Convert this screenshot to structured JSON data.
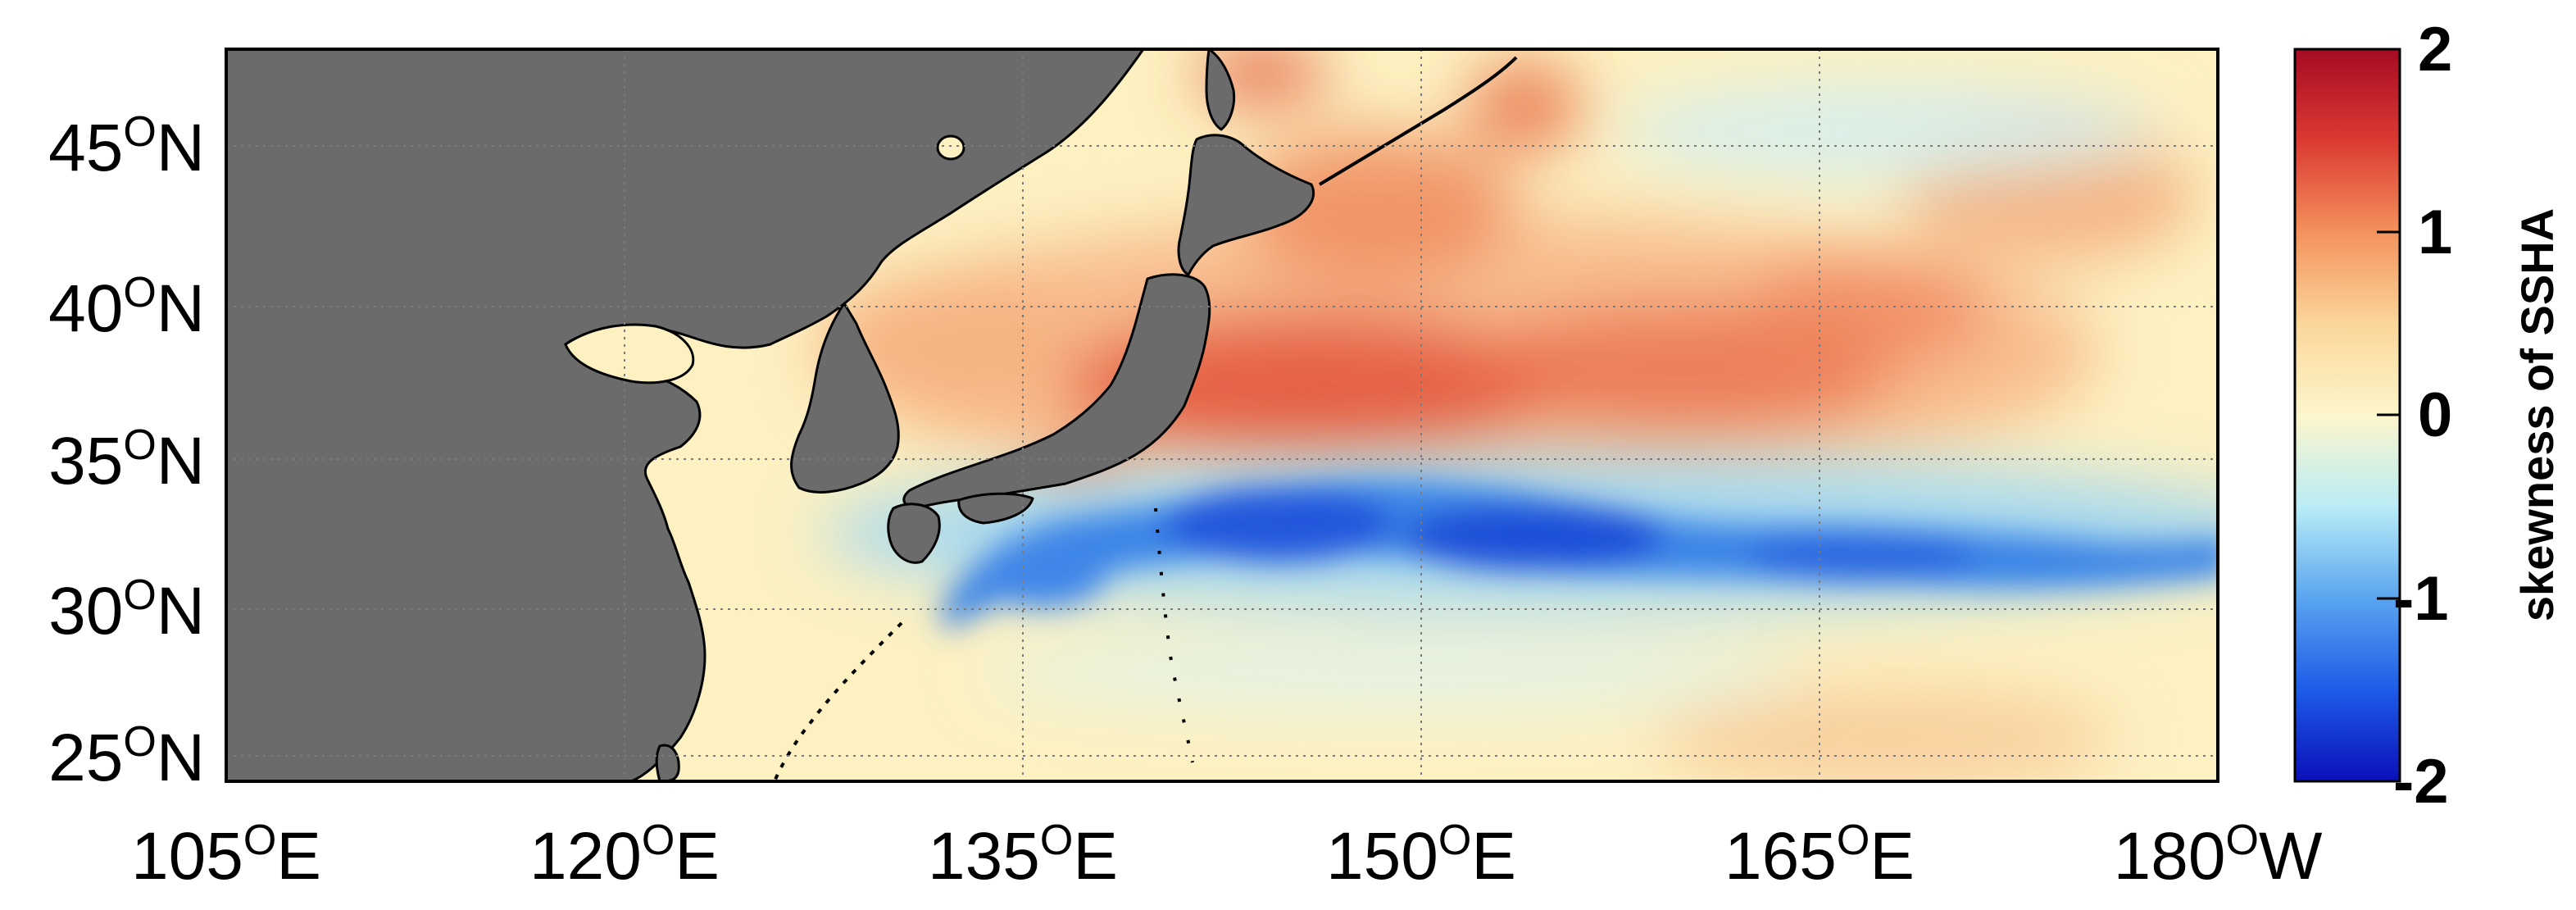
{
  "map": {
    "lat_ticks": [
      {
        "num": "45",
        "deg": "O",
        "hemi": "N",
        "value": 45
      },
      {
        "num": "40",
        "deg": "O",
        "hemi": "N",
        "value": 40
      },
      {
        "num": "35",
        "deg": "O",
        "hemi": "N",
        "value": 35
      },
      {
        "num": "30",
        "deg": "O",
        "hemi": "N",
        "value": 30
      },
      {
        "num": "25",
        "deg": "O",
        "hemi": "N",
        "value": 25
      }
    ],
    "lon_ticks": [
      {
        "num": "105",
        "deg": "O",
        "hemi": "E",
        "value": 105
      },
      {
        "num": "120",
        "deg": "O",
        "hemi": "E",
        "value": 120
      },
      {
        "num": "135",
        "deg": "O",
        "hemi": "E",
        "value": 135
      },
      {
        "num": "150",
        "deg": "O",
        "hemi": "E",
        "value": 150
      },
      {
        "num": "165",
        "deg": "O",
        "hemi": "E",
        "value": 165
      },
      {
        "num": "180",
        "deg": "O",
        "hemi": "W",
        "value": 180
      }
    ],
    "lon_range": [
      105,
      180
    ],
    "lat_range": [
      24,
      48
    ],
    "grid": "dotted",
    "land_color": "#6b6b6b",
    "coast_color": "#000000"
  },
  "colorbar": {
    "label": "skewness of SSHA",
    "ticks": [
      "2",
      "1",
      "0",
      "-1",
      "-2"
    ],
    "tick_values": [
      2,
      1,
      0,
      -1,
      -2
    ],
    "range": [
      -2,
      2
    ],
    "colormap": [
      "#0a10b8",
      "#1d5be8",
      "#5aa5f0",
      "#b9ecf6",
      "#fdf6cc",
      "#fbd69a",
      "#f4925c",
      "#db3a32",
      "#a50b23"
    ]
  },
  "features": [
    {
      "type": "negative-skewness band",
      "lon_from": 132,
      "lon_to": 180,
      "lat_center": 32,
      "min_value": -1.8
    },
    {
      "type": "positive-skewness region",
      "lon_from": 141,
      "lon_to": 180,
      "lat_center": 39,
      "max_value": 1.4
    }
  ]
}
